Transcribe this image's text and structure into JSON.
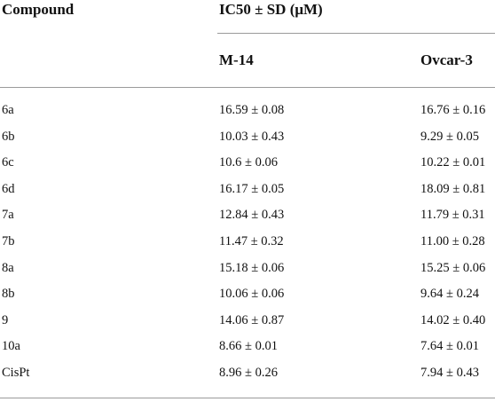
{
  "table": {
    "header": {
      "compound": "Compound",
      "group": "IC50 ± SD (μM)",
      "columns": [
        "M-14",
        "Ovcar-3"
      ]
    },
    "rows": [
      [
        "6a",
        "16.59 ± 0.08",
        "16.76 ± 0.16"
      ],
      [
        "6b",
        "10.03 ± 0.43",
        "9.29 ± 0.05"
      ],
      [
        "6c",
        "10.6 ± 0.06",
        "10.22 ± 0.01"
      ],
      [
        "6d",
        "16.17 ± 0.05",
        "18.09 ± 0.81"
      ],
      [
        "7a",
        "12.84 ± 0.43",
        "11.79 ± 0.31"
      ],
      [
        "7b",
        "11.47 ± 0.32",
        "11.00 ± 0.28"
      ],
      [
        "8a",
        "15.18 ± 0.06",
        "15.25 ± 0.06"
      ],
      [
        "8b",
        "10.06 ± 0.06",
        "9.64 ± 0.24"
      ],
      [
        "9",
        "14.06 ± 0.87",
        "14.02 ± 0.40"
      ],
      [
        "10a",
        "8.66 ± 0.01",
        "7.64 ± 0.01"
      ],
      [
        "CisPt",
        "8.96 ± 0.26",
        "7.94 ± 0.43"
      ]
    ]
  }
}
